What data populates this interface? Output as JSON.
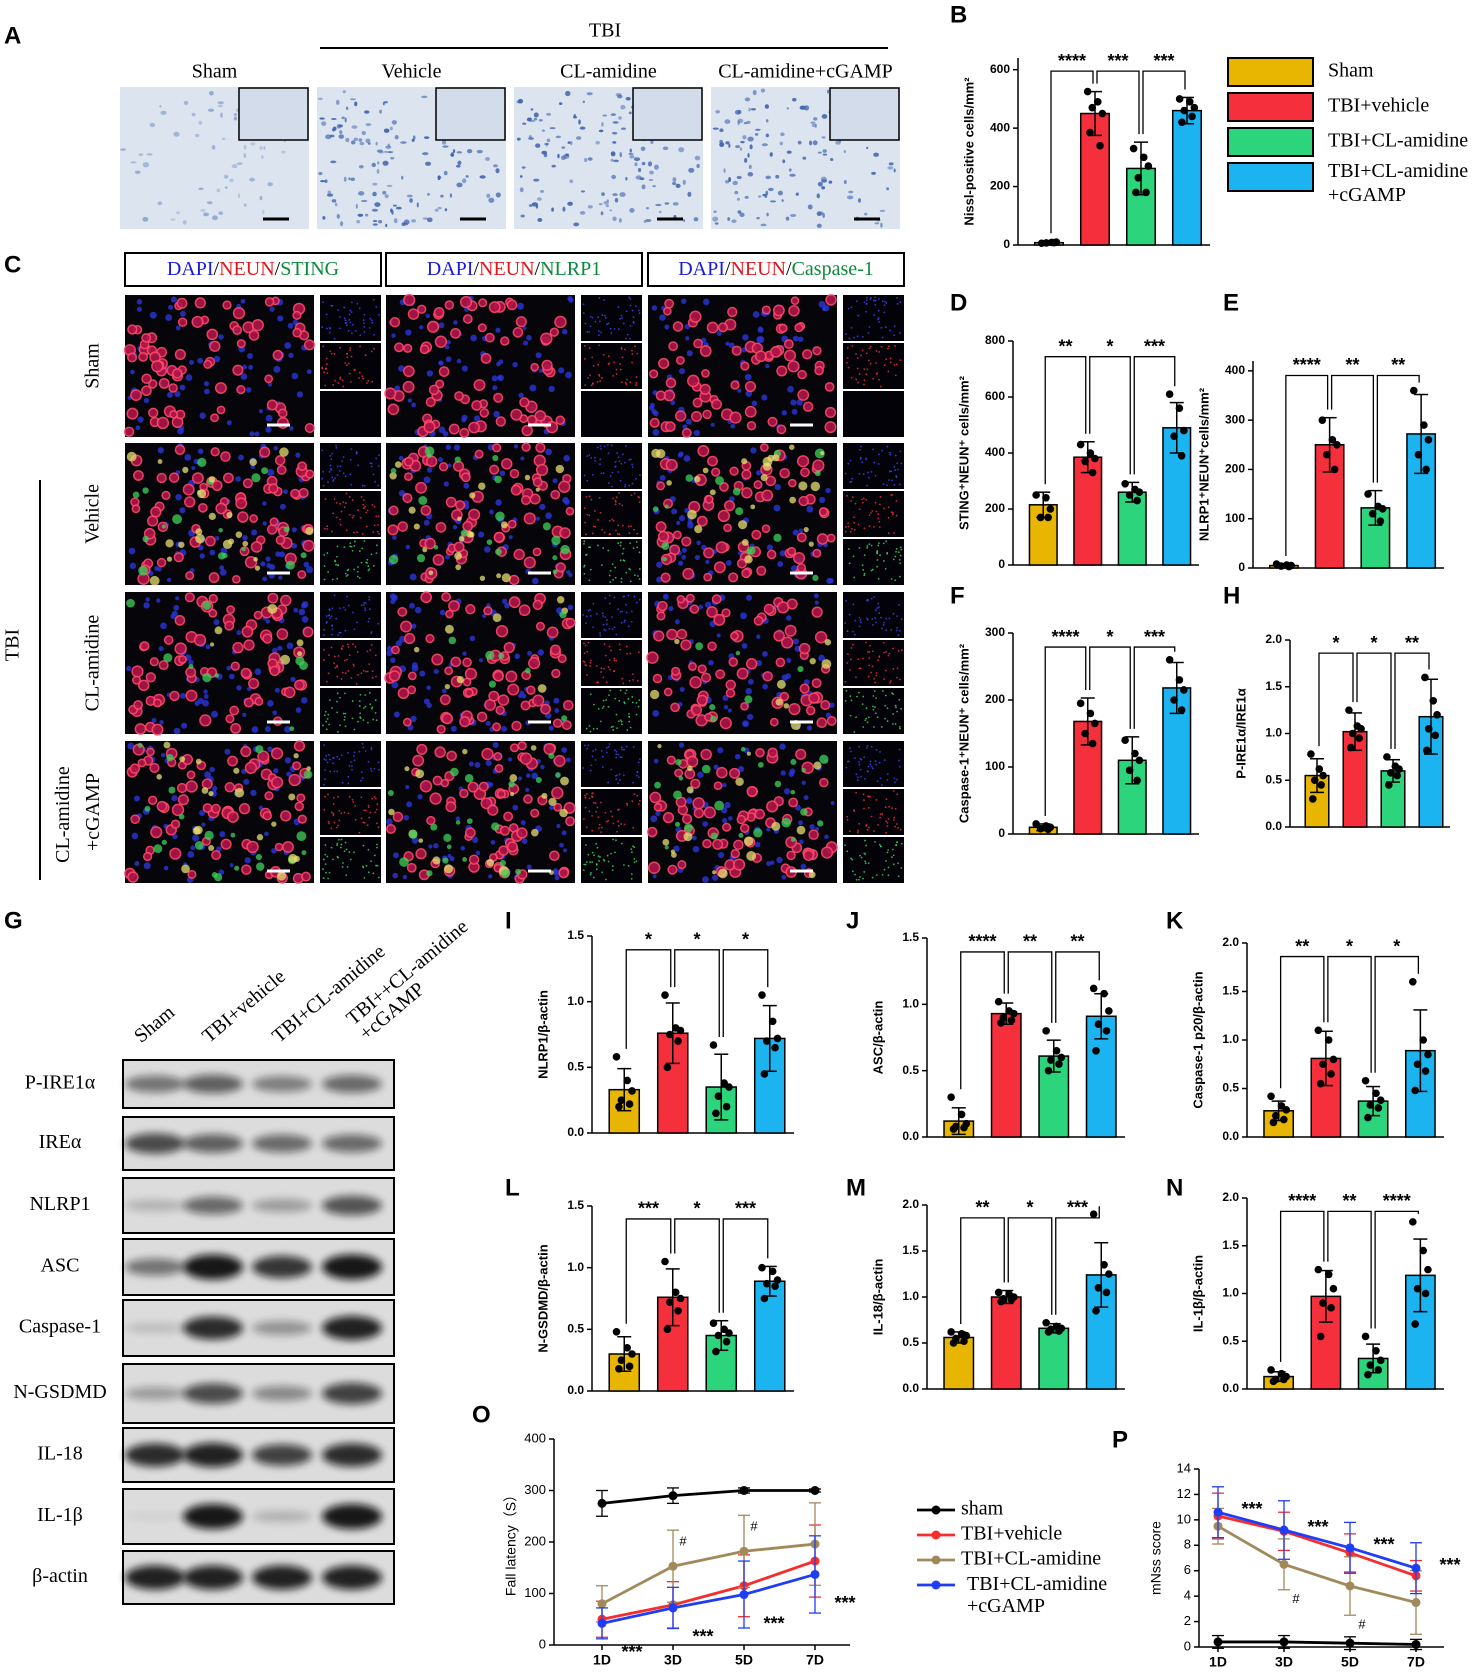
{
  "images": {
    "A": {
      "label": "A",
      "group": "TBI",
      "columns": [
        "Sham",
        "Vehicle",
        "CL-amidine",
        "CL-amidine+cGAMP"
      ]
    },
    "C": {
      "label": "C",
      "group": "TBI",
      "headers": [
        [
          "DAPI",
          "/",
          "NEUN",
          "/",
          "STING"
        ],
        [
          "DAPI",
          "/",
          "NEUN",
          "/",
          "NLRP1"
        ],
        [
          "DAPI",
          "/",
          "NEUN",
          "/",
          "Caspase-1"
        ]
      ],
      "header_colors": [
        "#1a1adb",
        "#000000",
        "#e0161b",
        "#000000",
        "#0a8a3a"
      ],
      "rows": [
        "Sham",
        "Vehicle",
        "CL-amidine",
        "CL-amidine +cGAMP"
      ]
    },
    "G": {
      "label": "G",
      "lanes": [
        "Sham",
        "TBI+vehicle",
        "TBI+CL-amidine",
        "TBI++CL-amidine +cGAMP"
      ],
      "rows": [
        "P-IRE1α",
        "IREα",
        "NLRP1",
        "ASC",
        "Caspase-1",
        "N-GSDMD",
        "IL-18",
        "IL-1β",
        "β-actin"
      ]
    }
  },
  "chart_data": [
    {
      "type": "bar",
      "panel": "B",
      "ylabel": "Nissl-positive cells/mm²",
      "ylim": [
        0,
        640
      ],
      "yticks": [
        0,
        200,
        400,
        600
      ],
      "colors": [
        "#E8B500",
        "#F5303C",
        "#2CD47C",
        "#1BB3F0"
      ],
      "values": [
        8,
        450,
        262,
        460
      ],
      "errors": [
        5,
        75,
        90,
        45
      ],
      "points": [
        [
          6,
          9,
          10,
          7,
          8
        ],
        [
          525,
          490,
          450,
          470,
          340,
          385
        ],
        [
          330,
          300,
          270,
          230,
          180,
          180
        ],
        [
          500,
          490,
          470,
          460,
          440,
          420
        ]
      ],
      "sig": [
        "****",
        "***",
        "***"
      ],
      "legend": [
        "Sham",
        "TBI+vehicle",
        "TBI+CL-amidine",
        "TBI+CL-amidine +cGAMP"
      ]
    },
    {
      "type": "bar",
      "panel": "D",
      "ylabel": "STING⁺NEUN⁺ cells/mm²",
      "ylim": [
        0,
        800
      ],
      "yticks": [
        0,
        200,
        400,
        600,
        800
      ],
      "colors": [
        "#E8B500",
        "#F5303C",
        "#2CD47C",
        "#1BB3F0"
      ],
      "values": [
        215,
        385,
        260,
        490
      ],
      "errors": [
        45,
        55,
        35,
        90
      ],
      "points": [
        [
          250,
          240,
          200,
          170,
          170
        ],
        [
          430,
          400,
          380,
          370,
          330
        ],
        [
          290,
          270,
          260,
          250,
          230
        ],
        [
          610,
          560,
          480,
          460,
          390
        ]
      ],
      "sig": [
        "**",
        "*",
        "***"
      ]
    },
    {
      "type": "bar",
      "panel": "E",
      "ylabel": "NLRP1⁺NEUN⁺cells/mm²",
      "ylim": [
        0,
        420
      ],
      "yticks": [
        0,
        100,
        200,
        300,
        400
      ],
      "colors": [
        "#E8B500",
        "#F5303C",
        "#2CD47C",
        "#1BB3F0"
      ],
      "values": [
        5,
        250,
        122,
        272
      ],
      "errors": [
        3,
        55,
        35,
        80
      ],
      "points": [
        [
          8,
          6,
          5,
          4,
          3
        ],
        [
          300,
          260,
          250,
          230,
          200
        ],
        [
          150,
          125,
          120,
          110,
          95
        ],
        [
          360,
          290,
          260,
          230,
          200
        ]
      ],
      "sig": [
        "****",
        "**",
        "**"
      ]
    },
    {
      "type": "bar",
      "panel": "F",
      "ylabel": "Caspase-1⁺NEUN⁺ cells/mm²",
      "ylim": [
        0,
        300
      ],
      "yticks": [
        0,
        100,
        200,
        300
      ],
      "colors": [
        "#E8B500",
        "#F5303C",
        "#2CD47C",
        "#1BB3F0"
      ],
      "values": [
        10,
        168,
        110,
        218
      ],
      "errors": [
        5,
        35,
        35,
        38
      ],
      "points": [
        [
          15,
          12,
          10,
          8,
          7
        ],
        [
          195,
          180,
          165,
          150,
          135
        ],
        [
          140,
          120,
          110,
          95,
          80
        ],
        [
          260,
          230,
          215,
          200,
          185
        ]
      ],
      "sig": [
        "****",
        "*",
        "***"
      ]
    },
    {
      "type": "bar",
      "panel": "H",
      "ylabel": "P-IRE1α/IRE1α",
      "ylim": [
        0,
        2
      ],
      "yticks": [
        {
          "value": 0,
          "label": "0.0"
        },
        0.5,
        {
          "value": 1,
          "label": "1.0"
        },
        1.5,
        {
          "value": 2,
          "label": "2.0"
        }
      ],
      "colors": [
        "#E8B500",
        "#F5303C",
        "#2CD47C",
        "#1BB3F0"
      ],
      "values": [
        0.55,
        1.02,
        0.6,
        1.18
      ],
      "errors": [
        0.18,
        0.2,
        0.12,
        0.4
      ],
      "points": [
        [
          0.78,
          0.62,
          0.55,
          0.5,
          0.45,
          0.3
        ],
        [
          1.25,
          1.08,
          1.05,
          1.0,
          0.95,
          0.85
        ],
        [
          0.75,
          0.65,
          0.62,
          0.58,
          0.55,
          0.45
        ],
        [
          1.6,
          1.35,
          1.2,
          1.05,
          0.98,
          0.82
        ]
      ],
      "sig": [
        "*",
        "*",
        "**"
      ]
    },
    {
      "type": "bar",
      "panel": "I",
      "ylabel": "NLRP1/β-actin",
      "ylim": [
        0,
        1.5
      ],
      "yticks": [
        {
          "value": 0,
          "label": "0.0"
        },
        0.5,
        {
          "value": 1,
          "label": "1.0"
        },
        1.5
      ],
      "colors": [
        "#E8B500",
        "#F5303C",
        "#2CD47C",
        "#1BB3F0"
      ],
      "values": [
        0.33,
        0.76,
        0.35,
        0.72
      ],
      "errors": [
        0.16,
        0.23,
        0.25,
        0.25
      ],
      "points": [
        [
          0.58,
          0.4,
          0.32,
          0.25,
          0.22,
          0.2
        ],
        [
          1.05,
          0.8,
          0.78,
          0.75,
          0.7,
          0.5
        ],
        [
          0.67,
          0.38,
          0.35,
          0.28,
          0.2,
          0.15
        ],
        [
          1.05,
          0.85,
          0.72,
          0.7,
          0.65,
          0.45
        ]
      ],
      "sig": [
        "*",
        "*",
        "*"
      ]
    },
    {
      "type": "bar",
      "panel": "J",
      "ylabel": "ASC/β-actin",
      "ylim": [
        0,
        1.5
      ],
      "yticks": [
        {
          "value": 0,
          "label": "0.0"
        },
        0.5,
        {
          "value": 1,
          "label": "1.0"
        },
        1.5
      ],
      "colors": [
        "#E8B500",
        "#F5303C",
        "#2CD47C",
        "#1BB3F0"
      ],
      "values": [
        0.12,
        0.93,
        0.61,
        0.91
      ],
      "errors": [
        0.1,
        0.08,
        0.12,
        0.17
      ],
      "points": [
        [
          0.3,
          0.17,
          0.1,
          0.08,
          0.07,
          0.06
        ],
        [
          1.02,
          0.95,
          0.93,
          0.9,
          0.88,
          0.86
        ],
        [
          0.8,
          0.65,
          0.6,
          0.58,
          0.55,
          0.5
        ],
        [
          1.12,
          1.08,
          0.95,
          0.85,
          0.8,
          0.65
        ]
      ],
      "sig": [
        "****",
        "**",
        "**"
      ]
    },
    {
      "type": "bar",
      "panel": "K",
      "ylabel": "Caspase-1 p20/β-actin",
      "ylim": [
        0,
        2
      ],
      "yticks": [
        {
          "value": 0,
          "label": "0.0"
        },
        0.5,
        {
          "value": 1,
          "label": "1.0"
        },
        1.5,
        {
          "value": 2,
          "label": "2.0"
        }
      ],
      "colors": [
        "#E8B500",
        "#F5303C",
        "#2CD47C",
        "#1BB3F0"
      ],
      "values": [
        0.27,
        0.81,
        0.37,
        0.89
      ],
      "errors": [
        0.1,
        0.28,
        0.15,
        0.42
      ],
      "points": [
        [
          0.42,
          0.32,
          0.28,
          0.22,
          0.18,
          0.15
        ],
        [
          1.1,
          1.0,
          0.8,
          0.75,
          0.65,
          0.55
        ],
        [
          0.58,
          0.45,
          0.38,
          0.33,
          0.3,
          0.2
        ],
        [
          1.6,
          1.0,
          0.85,
          0.75,
          0.68,
          0.48
        ]
      ],
      "sig": [
        "**",
        "*",
        "*"
      ]
    },
    {
      "type": "bar",
      "panel": "L",
      "ylabel": "N-GSDMD/β-actin",
      "ylim": [
        0,
        1.5
      ],
      "yticks": [
        {
          "value": 0,
          "label": "0.0"
        },
        0.5,
        {
          "value": 1,
          "label": "1.0"
        },
        1.5
      ],
      "colors": [
        "#E8B500",
        "#F5303C",
        "#2CD47C",
        "#1BB3F0"
      ],
      "values": [
        0.3,
        0.76,
        0.45,
        0.89
      ],
      "errors": [
        0.14,
        0.23,
        0.12,
        0.12
      ],
      "points": [
        [
          0.48,
          0.35,
          0.3,
          0.25,
          0.2,
          0.18
        ],
        [
          1.05,
          0.8,
          0.75,
          0.72,
          0.65,
          0.5
        ],
        [
          0.55,
          0.5,
          0.47,
          0.45,
          0.4,
          0.32
        ],
        [
          1.0,
          0.97,
          0.9,
          0.87,
          0.85,
          0.75
        ]
      ],
      "sig": [
        "***",
        "*",
        "***"
      ]
    },
    {
      "type": "bar",
      "panel": "M",
      "ylabel": "IL-18/β-actin",
      "ylim": [
        0,
        2
      ],
      "yticks": [
        {
          "value": 0,
          "label": "0.0"
        },
        0.5,
        {
          "value": 1,
          "label": "1.0"
        },
        1.5,
        {
          "value": 2,
          "label": "2.0"
        }
      ],
      "colors": [
        "#E8B500",
        "#F5303C",
        "#2CD47C",
        "#1BB3F0"
      ],
      "values": [
        0.56,
        1.0,
        0.66,
        1.24
      ],
      "errors": [
        0.06,
        0.07,
        0.05,
        0.35
      ],
      "points": [
        [
          0.62,
          0.6,
          0.58,
          0.55,
          0.52,
          0.5
        ],
        [
          1.05,
          1.03,
          1.0,
          0.98,
          0.97,
          0.95
        ],
        [
          0.72,
          0.68,
          0.66,
          0.65,
          0.63,
          0.62
        ],
        [
          1.9,
          1.35,
          1.25,
          1.1,
          1.05,
          0.85
        ]
      ],
      "sig": [
        "**",
        "*",
        "***"
      ]
    },
    {
      "type": "bar",
      "panel": "N",
      "ylabel": "IL-1β/β-actin",
      "ylim": [
        0,
        2
      ],
      "yticks": [
        {
          "value": 0,
          "label": "0.0"
        },
        0.5,
        {
          "value": 1,
          "label": "1.0"
        },
        1.5,
        {
          "value": 2,
          "label": "2.0"
        }
      ],
      "colors": [
        "#E8B500",
        "#F5303C",
        "#2CD47C",
        "#1BB3F0"
      ],
      "values": [
        0.13,
        0.97,
        0.32,
        1.19
      ],
      "errors": [
        0.05,
        0.27,
        0.15,
        0.38
      ],
      "points": [
        [
          0.2,
          0.16,
          0.13,
          0.1,
          0.1,
          0.08
        ],
        [
          1.25,
          1.2,
          1.05,
          0.9,
          0.85,
          0.55
        ],
        [
          0.55,
          0.4,
          0.3,
          0.25,
          0.2,
          0.15
        ],
        [
          1.75,
          1.45,
          1.25,
          1.05,
          1.0,
          0.68
        ]
      ],
      "sig": [
        "****",
        "**",
        "****"
      ]
    },
    {
      "type": "line",
      "panel": "O",
      "ylabel": "Fall latency（S）",
      "x": [
        "1D",
        "3D",
        "5D",
        "7D"
      ],
      "ylim": [
        0,
        400
      ],
      "yticks": [
        0,
        100,
        200,
        300,
        400
      ],
      "series": [
        {
          "name": "sham",
          "color": "#000000",
          "values": [
            275,
            290,
            300,
            300
          ],
          "errors": [
            25,
            15,
            5,
            3
          ]
        },
        {
          "name": "TBI+vehicle",
          "color": "#F52D2D",
          "values": [
            50,
            78,
            115,
            163
          ],
          "errors": [
            35,
            45,
            60,
            70
          ]
        },
        {
          "name": "TBI+CL-amidine",
          "color": "#A08A5C",
          "values": [
            80,
            153,
            182,
            196
          ],
          "errors": [
            35,
            70,
            70,
            80
          ]
        },
        {
          "name": "TBI+CL-amidine +cGAMP",
          "color": "#1F3DF5",
          "values": [
            42,
            72,
            98,
            137
          ],
          "errors": [
            30,
            40,
            65,
            75
          ]
        }
      ],
      "sig": [
        "***",
        "***",
        "***",
        "***"
      ],
      "hash": [
        null,
        "#",
        "#",
        null
      ]
    },
    {
      "type": "line",
      "panel": "P",
      "ylabel": "mNss score",
      "x": [
        "1D",
        "3D",
        "5D",
        "7D"
      ],
      "ylim": [
        0,
        14
      ],
      "yticks": [
        0,
        2,
        4,
        6,
        8,
        10,
        12,
        14
      ],
      "series": [
        {
          "color": "#000000",
          "values": [
            0.4,
            0.4,
            0.3,
            0.2
          ],
          "errors": [
            0.5,
            0.5,
            0.5,
            0.4
          ]
        },
        {
          "color": "#F52D2D",
          "values": [
            10.3,
            9.1,
            7.4,
            5.6
          ],
          "errors": [
            1.8,
            1.5,
            1.5,
            1.2
          ]
        },
        {
          "color": "#A08A5C",
          "values": [
            9.5,
            6.5,
            4.8,
            3.5
          ],
          "errors": [
            1.4,
            2.0,
            2.3,
            2.5
          ]
        },
        {
          "color": "#1F3DF5",
          "values": [
            10.6,
            9.2,
            7.8,
            6.2
          ],
          "errors": [
            2.0,
            2.3,
            2.0,
            2.0
          ]
        }
      ],
      "sig": [
        "***",
        "***",
        "***",
        "***"
      ],
      "hash": [
        null,
        "#",
        "#",
        null
      ]
    }
  ]
}
